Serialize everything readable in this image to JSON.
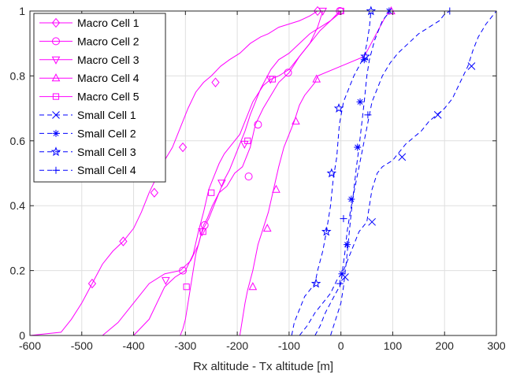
{
  "chart_data": {
    "type": "line",
    "title": "",
    "xlabel": "Rx altitude - Tx altitude [m]",
    "ylabel": "",
    "xlim": [
      -600,
      300
    ],
    "ylim": [
      0,
      1
    ],
    "xticks": [
      -600,
      -500,
      -400,
      -300,
      -200,
      -100,
      0,
      100,
      200,
      300
    ],
    "xtick_labels": [
      "-600",
      "-500",
      "-400",
      "-300",
      "-200",
      "-100",
      "0",
      "100",
      "200",
      "300"
    ],
    "yticks": [
      0,
      0.2,
      0.4,
      0.6,
      0.8,
      1
    ],
    "ytick_labels": [
      "0",
      "0.2",
      "0.4",
      "0.6",
      "0.8",
      "1"
    ],
    "grid": true,
    "legend_position": "top-left",
    "series": [
      {
        "name": "Macro Cell 1",
        "color": "#ff00ff",
        "line_style": "solid",
        "marker": "diamond",
        "x": [
          -600,
          -540,
          -520,
          -500,
          -480,
          -460,
          -440,
          -420,
          -400,
          -385,
          -370,
          -355,
          -340,
          -325,
          -310,
          -295,
          -280,
          -265,
          -250,
          -232,
          -215,
          -195,
          -175,
          -155,
          -140,
          -120,
          -100,
          -80,
          -60,
          -45,
          -30,
          -15,
          -5
        ],
        "y": [
          0.0,
          0.01,
          0.05,
          0.1,
          0.16,
          0.22,
          0.26,
          0.29,
          0.33,
          0.38,
          0.44,
          0.49,
          0.54,
          0.58,
          0.64,
          0.7,
          0.75,
          0.78,
          0.8,
          0.83,
          0.85,
          0.87,
          0.9,
          0.92,
          0.93,
          0.95,
          0.96,
          0.97,
          0.985,
          1.0,
          1.0,
          1.0,
          1.0
        ],
        "marker_x": [
          -480,
          -420,
          -360,
          -305,
          -242,
          -45
        ],
        "marker_y": [
          0.16,
          0.29,
          0.44,
          0.58,
          0.78,
          1.0
        ]
      },
      {
        "name": "Macro Cell 2",
        "color": "#ff00ff",
        "line_style": "solid",
        "marker": "circle",
        "x": [
          -460,
          -430,
          -400,
          -370,
          -340,
          -310,
          -290,
          -275,
          -265,
          -258,
          -248,
          -235,
          -220,
          -205,
          -190,
          -175,
          -165,
          -150,
          -135,
          -120,
          -100,
          -80,
          -60,
          -40,
          -20,
          -2
        ],
        "y": [
          0.0,
          0.04,
          0.1,
          0.16,
          0.19,
          0.2,
          0.23,
          0.28,
          0.34,
          0.36,
          0.4,
          0.44,
          0.46,
          0.5,
          0.52,
          0.58,
          0.65,
          0.7,
          0.74,
          0.78,
          0.81,
          0.86,
          0.9,
          0.94,
          0.97,
          1.0
        ],
        "marker_x": [
          -305,
          -263,
          -178,
          -160,
          -102,
          -2
        ],
        "marker_y": [
          0.2,
          0.34,
          0.49,
          0.65,
          0.81,
          1.0
        ]
      },
      {
        "name": "Macro Cell 3",
        "color": "#ff00ff",
        "line_style": "solid",
        "marker": "triangle-down",
        "x": [
          -400,
          -370,
          -340,
          -320,
          -300,
          -285,
          -275,
          -265,
          -255,
          -245,
          -235,
          -225,
          -215,
          -205,
          -195,
          -185,
          -170,
          -150,
          -135,
          -120,
          -100,
          -80,
          -60,
          -45,
          -35
        ],
        "y": [
          0.0,
          0.05,
          0.15,
          0.18,
          0.2,
          0.25,
          0.32,
          0.38,
          0.45,
          0.49,
          0.53,
          0.56,
          0.58,
          0.6,
          0.62,
          0.66,
          0.72,
          0.77,
          0.79,
          0.8,
          0.82,
          0.86,
          0.9,
          0.95,
          1.0
        ],
        "marker_x": [
          -338,
          -268,
          -230,
          -186,
          -136,
          -35
        ],
        "marker_y": [
          0.17,
          0.32,
          0.47,
          0.59,
          0.79,
          1.0
        ]
      },
      {
        "name": "Macro Cell 4",
        "color": "#ff00ff",
        "line_style": "solid",
        "marker": "triangle-up",
        "x": [
          -195,
          -190,
          -185,
          -180,
          -175,
          -170,
          -165,
          -160,
          -150,
          -140,
          -130,
          -120,
          -110,
          -100,
          -90,
          -80,
          -70,
          -60,
          -50,
          -45,
          0,
          45,
          55,
          65,
          75,
          85,
          95
        ],
        "y": [
          0.0,
          0.05,
          0.1,
          0.14,
          0.17,
          0.2,
          0.24,
          0.28,
          0.33,
          0.38,
          0.45,
          0.52,
          0.58,
          0.62,
          0.66,
          0.71,
          0.74,
          0.76,
          0.78,
          0.8,
          0.83,
          0.86,
          0.89,
          0.92,
          0.95,
          0.98,
          1.0
        ],
        "marker_x": [
          -170,
          -142,
          -125,
          -87,
          -47,
          97
        ],
        "marker_y": [
          0.15,
          0.33,
          0.45,
          0.66,
          0.79,
          1.0
        ]
      },
      {
        "name": "Macro Cell 5",
        "color": "#ff00ff",
        "line_style": "solid",
        "marker": "square",
        "x": [
          -310,
          -305,
          -300,
          -295,
          -290,
          -285,
          -280,
          -275,
          -270,
          -265,
          -255,
          -245,
          -235,
          -225,
          -215,
          -205,
          -195,
          -185,
          -175,
          -165,
          -155,
          -145,
          -135,
          -120,
          -100,
          -80,
          -60,
          -40,
          -20,
          -5,
          0
        ],
        "y": [
          0.0,
          0.02,
          0.05,
          0.1,
          0.15,
          0.2,
          0.25,
          0.28,
          0.31,
          0.33,
          0.36,
          0.4,
          0.44,
          0.48,
          0.51,
          0.55,
          0.59,
          0.63,
          0.68,
          0.72,
          0.76,
          0.79,
          0.82,
          0.85,
          0.87,
          0.9,
          0.93,
          0.95,
          0.97,
          0.99,
          1.0
        ],
        "marker_x": [
          -298,
          -266,
          -250,
          -180,
          -132,
          0
        ],
        "marker_y": [
          0.15,
          0.32,
          0.44,
          0.6,
          0.79,
          1.0
        ]
      },
      {
        "name": "Small Cell 1",
        "color": "#0000ff",
        "line_style": "dashed",
        "marker": "x",
        "x": [
          -80,
          -65,
          -50,
          -35,
          -20,
          -8,
          5,
          15,
          25,
          35,
          50,
          55,
          60,
          70,
          80,
          90,
          100,
          110,
          125,
          140,
          155,
          170,
          185,
          200,
          215,
          230,
          245,
          255,
          265,
          280,
          300
        ],
        "y": [
          0.0,
          0.03,
          0.07,
          0.1,
          0.13,
          0.17,
          0.2,
          0.24,
          0.28,
          0.32,
          0.35,
          0.4,
          0.45,
          0.5,
          0.52,
          0.53,
          0.54,
          0.56,
          0.59,
          0.61,
          0.63,
          0.66,
          0.68,
          0.7,
          0.73,
          0.78,
          0.83,
          0.88,
          0.92,
          0.96,
          1.0
        ],
        "marker_x": [
          8,
          60,
          118,
          187,
          252
        ],
        "marker_y": [
          0.18,
          0.35,
          0.55,
          0.68,
          0.83
        ]
      },
      {
        "name": "Small Cell 2",
        "color": "#0000ff",
        "line_style": "dashed",
        "marker": "asterisk",
        "x": [
          -20,
          -10,
          0,
          5,
          10,
          15,
          20,
          25,
          30,
          35,
          40,
          45,
          50,
          55,
          60,
          65,
          70,
          75,
          80,
          85,
          90,
          93
        ],
        "y": [
          0.0,
          0.05,
          0.1,
          0.15,
          0.22,
          0.3,
          0.38,
          0.45,
          0.52,
          0.58,
          0.65,
          0.72,
          0.8,
          0.85,
          0.88,
          0.91,
          0.93,
          0.95,
          0.97,
          0.98,
          0.99,
          1.0
        ],
        "marker_x": [
          2,
          12,
          20,
          32,
          37,
          45,
          93
        ],
        "marker_y": [
          0.19,
          0.28,
          0.42,
          0.58,
          0.72,
          0.85,
          1.0
        ]
      },
      {
        "name": "Small Cell 3",
        "color": "#0000ff",
        "line_style": "dashed",
        "marker": "pentagram",
        "x": [
          -95,
          -90,
          -80,
          -70,
          -60,
          -50,
          -45,
          -35,
          -28,
          -20,
          -15,
          -8,
          -3,
          5,
          15,
          25,
          35,
          45,
          50,
          55,
          58
        ],
        "y": [
          0.0,
          0.04,
          0.08,
          0.12,
          0.14,
          0.16,
          0.2,
          0.26,
          0.32,
          0.4,
          0.48,
          0.55,
          0.65,
          0.72,
          0.76,
          0.8,
          0.83,
          0.86,
          0.9,
          0.95,
          1.0
        ],
        "marker_x": [
          -48,
          -28,
          -18,
          -4,
          47,
          58
        ],
        "marker_y": [
          0.16,
          0.32,
          0.5,
          0.7,
          0.86,
          1.0
        ]
      },
      {
        "name": "Small Cell 4",
        "color": "#0000ff",
        "line_style": "dashed",
        "marker": "plus",
        "x": [
          -50,
          -40,
          -30,
          -20,
          -10,
          -3,
          0,
          3,
          8,
          12,
          18,
          25,
          30,
          35,
          40,
          45,
          50,
          55,
          60,
          70,
          80,
          95,
          110,
          130,
          150,
          170,
          190,
          200,
          210
        ],
        "y": [
          0.0,
          0.03,
          0.07,
          0.1,
          0.13,
          0.15,
          0.16,
          0.2,
          0.26,
          0.32,
          0.38,
          0.44,
          0.48,
          0.52,
          0.56,
          0.6,
          0.64,
          0.68,
          0.72,
          0.76,
          0.8,
          0.84,
          0.87,
          0.9,
          0.93,
          0.95,
          0.97,
          0.99,
          1.0
        ],
        "marker_x": [
          -2,
          5,
          52,
          210
        ],
        "marker_y": [
          0.16,
          0.36,
          0.68,
          1.0
        ]
      }
    ]
  }
}
